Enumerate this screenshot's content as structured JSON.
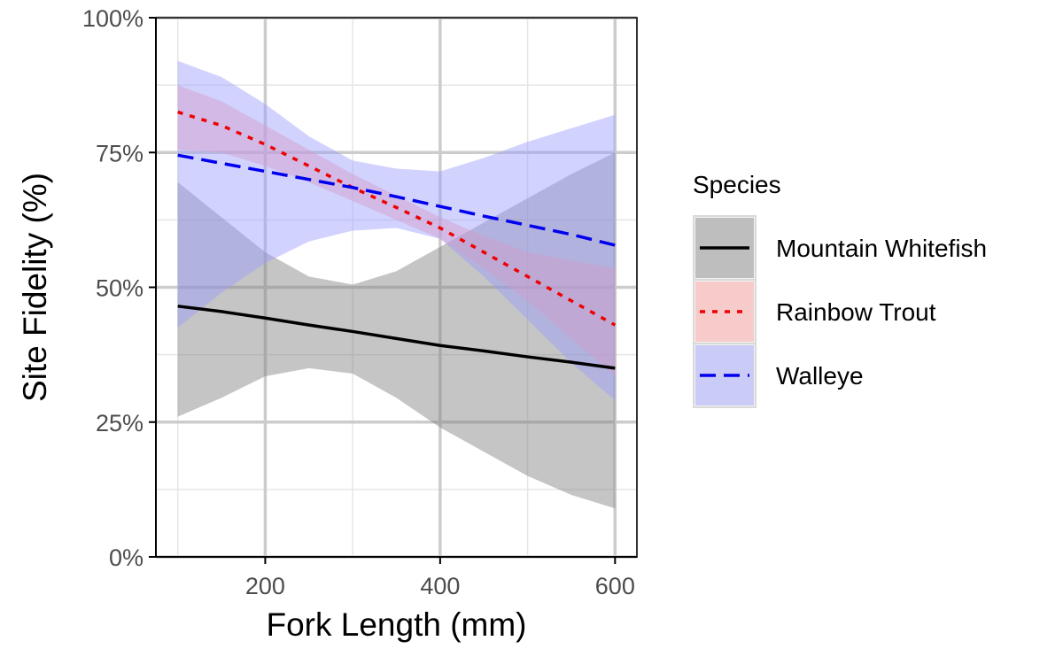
{
  "chart_data": {
    "type": "line",
    "xlabel": "Fork Length (mm)",
    "ylabel": "Site Fidelity (%)",
    "xlim": [
      75,
      625
    ],
    "ylim": [
      0,
      1
    ],
    "x_ticks": [
      {
        "value": 200,
        "label": "200"
      },
      {
        "value": 400,
        "label": "400"
      },
      {
        "value": 600,
        "label": "600"
      }
    ],
    "y_ticks": [
      {
        "value": 0,
        "label": "0%"
      },
      {
        "value": 0.25,
        "label": "25%"
      },
      {
        "value": 0.5,
        "label": "50%"
      },
      {
        "value": 0.75,
        "label": "75%"
      },
      {
        "value": 1,
        "label": "100%"
      }
    ],
    "grid": true,
    "legend": {
      "title": "Species",
      "position": "right"
    },
    "x": [
      100,
      150,
      200,
      250,
      300,
      350,
      400,
      450,
      500,
      550,
      600
    ],
    "series": [
      {
        "name": "Mountain Whitefish",
        "color": "#000000",
        "fill": "#7f7f7f",
        "dash": "solid",
        "values": [
          0.465,
          0.455,
          0.443,
          0.43,
          0.418,
          0.405,
          0.392,
          0.382,
          0.371,
          0.361,
          0.35
        ],
        "lower": [
          0.26,
          0.295,
          0.335,
          0.35,
          0.34,
          0.295,
          0.24,
          0.195,
          0.15,
          0.115,
          0.09
        ],
        "upper": [
          0.695,
          0.63,
          0.565,
          0.52,
          0.505,
          0.53,
          0.575,
          0.62,
          0.665,
          0.71,
          0.75
        ]
      },
      {
        "name": "Rainbow Trout",
        "color": "#ee0000",
        "fill": "#ff9c9c",
        "dash": "dotted",
        "values": [
          0.825,
          0.8,
          0.765,
          0.725,
          0.685,
          0.648,
          0.61,
          0.565,
          0.52,
          0.475,
          0.43
        ],
        "lower": [
          0.755,
          0.75,
          0.725,
          0.695,
          0.66,
          0.625,
          0.59,
          0.535,
          0.475,
          0.405,
          0.335
        ],
        "upper": [
          0.875,
          0.845,
          0.8,
          0.755,
          0.71,
          0.67,
          0.63,
          0.595,
          0.565,
          0.55,
          0.535
        ]
      },
      {
        "name": "Walleye",
        "color": "#0000ee",
        "fill": "#9c9cff",
        "dash": "dashed",
        "values": [
          0.745,
          0.73,
          0.715,
          0.7,
          0.685,
          0.668,
          0.65,
          0.632,
          0.615,
          0.598,
          0.578
        ],
        "lower": [
          0.425,
          0.49,
          0.545,
          0.585,
          0.605,
          0.61,
          0.59,
          0.52,
          0.44,
          0.36,
          0.29
        ],
        "upper": [
          0.92,
          0.89,
          0.84,
          0.78,
          0.735,
          0.72,
          0.715,
          0.74,
          0.77,
          0.795,
          0.82
        ]
      }
    ]
  }
}
